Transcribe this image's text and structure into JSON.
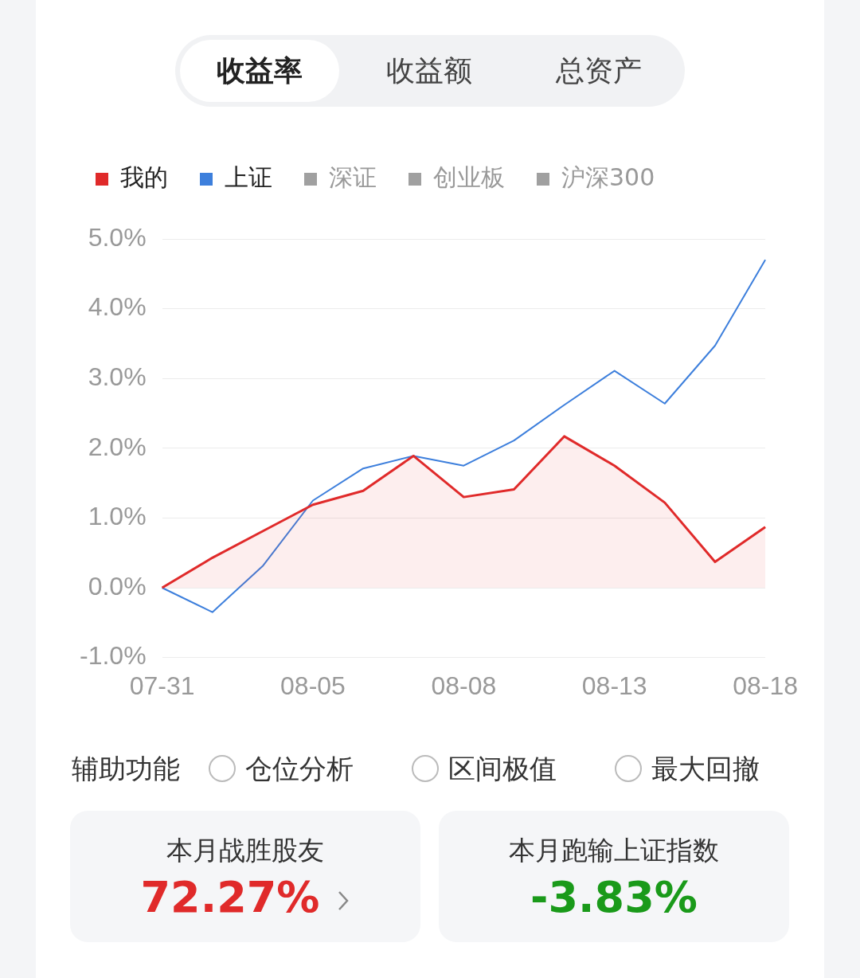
{
  "chart_data": {
    "type": "line",
    "categories": [
      "07-31",
      null,
      null,
      "08-05",
      null,
      null,
      "08-08",
      null,
      null,
      "08-13",
      null,
      null,
      "08-18"
    ],
    "series": [
      {
        "name": "我的",
        "type": "area",
        "color": "#e02a2a",
        "values": [
          0,
          0.43,
          0.81,
          1.19,
          1.39,
          1.89,
          1.3,
          1.41,
          2.17,
          1.75,
          1.22,
          0.37,
          0.87
        ]
      },
      {
        "name": "上证",
        "color": "#3d7fdc",
        "values": [
          0,
          -0.35,
          0.31,
          1.25,
          1.71,
          1.89,
          1.75,
          2.11,
          2.62,
          3.11,
          2.64,
          3.47,
          4.7
        ]
      },
      {
        "name": "深证",
        "color": "#a0a0a0",
        "values": [
          null,
          null,
          null,
          null,
          null,
          null,
          null,
          null,
          null,
          null,
          null,
          null,
          null
        ]
      },
      {
        "name": "创业板",
        "color": "#a0a0a0",
        "values": [
          null,
          null,
          null,
          null,
          null,
          null,
          null,
          null,
          null,
          null,
          null,
          null,
          null
        ]
      },
      {
        "name": "沪深300",
        "color": "#a0a0a0",
        "values": [
          null,
          null,
          null,
          null,
          null,
          null,
          null,
          null,
          null,
          null,
          null,
          null,
          null
        ]
      }
    ],
    "ylim": [
      -1,
      5
    ],
    "yticks": [
      {
        "value": -1,
        "label": "-1.0%"
      },
      {
        "value": 0,
        "label": "0.0%"
      },
      {
        "value": 1,
        "label": "1.0%"
      },
      {
        "value": 2,
        "label": "2.0%"
      },
      {
        "value": 3,
        "label": "3.0%"
      },
      {
        "value": 4,
        "label": "4.0%"
      },
      {
        "value": 5,
        "label": "5.0%"
      }
    ],
    "grid": "y",
    "legend": "top left",
    "marker": "none",
    "line_style": "solid",
    "annotations": [
      "收益率",
      "收益额",
      "总资产",
      "辅助功能",
      "仓位分析",
      "区间极值",
      "最大回撤",
      "本月战胜股友",
      "72.27%",
      "本月跑输上证指数",
      "-3.83%"
    ]
  }
}
